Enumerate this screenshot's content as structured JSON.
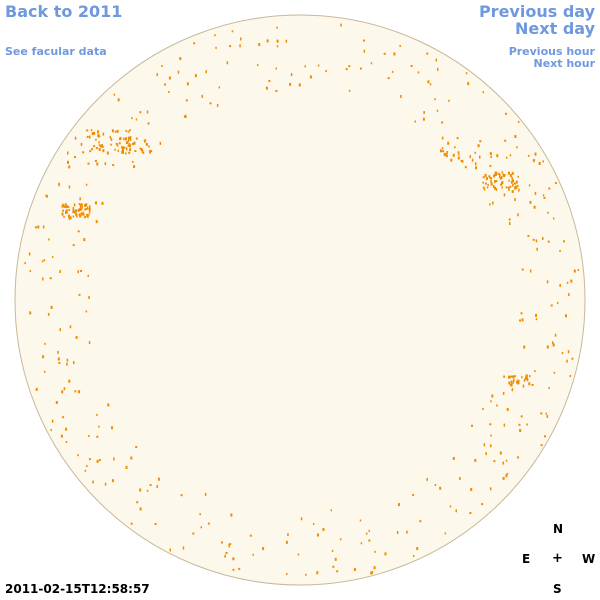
{
  "nav": {
    "back_label": "Back to 2011",
    "facular_label": "See facular data",
    "previous_day_label": "Previous day",
    "next_day_label": "Next day",
    "previous_hour_label": "Previous hour",
    "next_hour_label": "Next hour",
    "link_color": "#6f98de"
  },
  "timestamp": "2011-02-15T12:58:57",
  "compass": {
    "north": "N",
    "east": "E",
    "center": "+",
    "west": "W",
    "south": "S"
  },
  "sun": {
    "disk_color": "#fdf8ec",
    "limb_color": "#c8b89a",
    "facula_color": "#f08c00"
  }
}
